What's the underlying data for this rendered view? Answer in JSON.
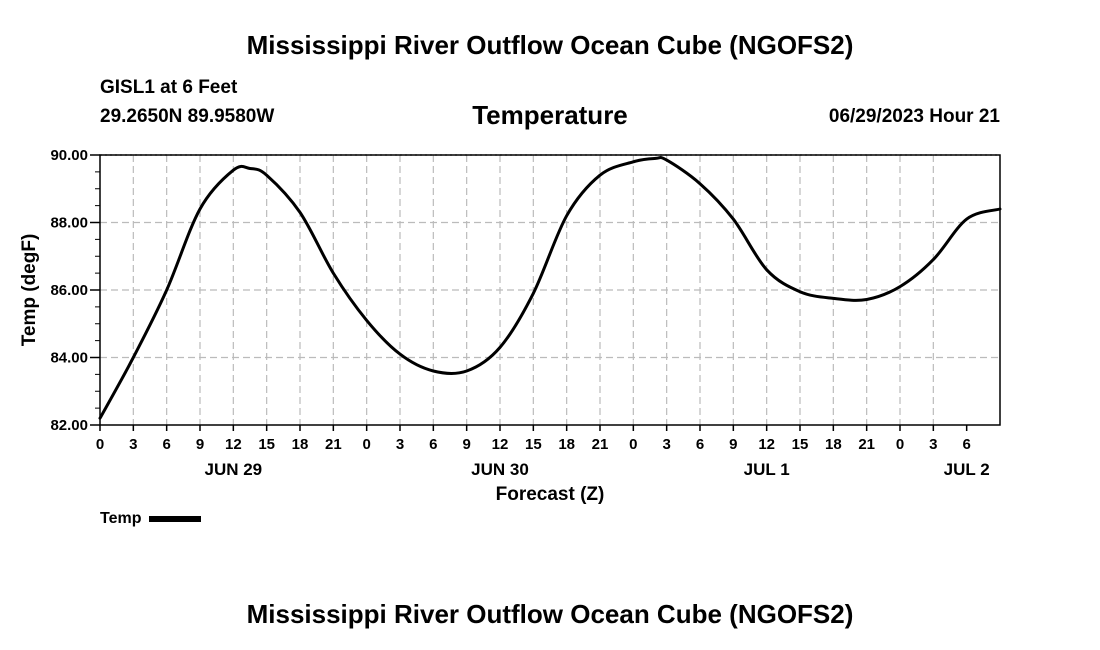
{
  "header": {
    "main_title": "Mississippi River Outflow Ocean Cube (NGOFS2)",
    "station_line": "GISL1 at 6 Feet",
    "coords_line": "29.2650N  89.9580W",
    "datetime": "06/29/2023 Hour 21"
  },
  "footer": {
    "repeat_title": "Mississippi River Outflow Ocean Cube (NGOFS2)"
  },
  "legend": {
    "label": "Temp"
  },
  "colors": {
    "line": "#000000",
    "grid": "#bbbbbb",
    "background": "#ffffff"
  },
  "chart_data": {
    "type": "line",
    "title": "Temperature",
    "xlabel": "Forecast (Z)",
    "ylabel": "Temp (degF)",
    "ylim": [
      82,
      90
    ],
    "xlim": [
      0,
      81
    ],
    "x_unit": "hours since JUN 29 00Z",
    "y_ticks": [
      "82.00",
      "84.00",
      "86.00",
      "88.00",
      "90.00"
    ],
    "x_ticks": [
      "0",
      "3",
      "6",
      "9",
      "12",
      "15",
      "18",
      "21",
      "0",
      "3",
      "6",
      "9",
      "12",
      "15",
      "18",
      "21",
      "0",
      "3",
      "6",
      "9",
      "12",
      "15",
      "18",
      "21",
      "0",
      "3",
      "6"
    ],
    "day_labels": [
      {
        "label": "JUN 29",
        "hour": 12
      },
      {
        "label": "JUN 30",
        "hour": 36
      },
      {
        "label": "JUL 1",
        "hour": 60
      },
      {
        "label": "JUL 2",
        "hour": 78
      }
    ],
    "grid": true,
    "series": [
      {
        "name": "Temp",
        "x": [
          0,
          3,
          6,
          9,
          12,
          13.5,
          15,
          18,
          21,
          24,
          27,
          30,
          33,
          36,
          39,
          42,
          45,
          48,
          50,
          51,
          54,
          57,
          60,
          63,
          66,
          69,
          72,
          75,
          78,
          81
        ],
        "y": [
          82.2,
          84.0,
          86.0,
          88.4,
          89.55,
          89.6,
          89.4,
          88.3,
          86.5,
          85.1,
          84.1,
          83.6,
          83.6,
          84.3,
          85.9,
          88.2,
          89.4,
          89.8,
          89.9,
          89.85,
          89.15,
          88.1,
          86.6,
          85.95,
          85.75,
          85.72,
          86.1,
          86.9,
          88.1,
          88.4
        ]
      }
    ]
  }
}
